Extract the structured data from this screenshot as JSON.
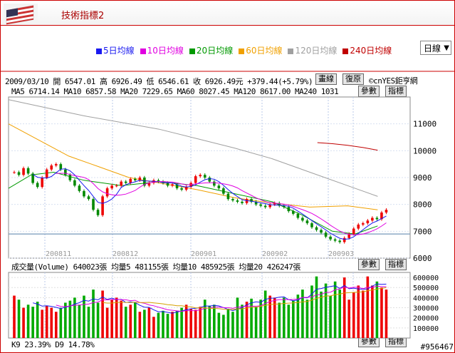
{
  "header": {
    "title": "技術指標2"
  },
  "legend": [
    {
      "label": "5日均線",
      "color": "#1a1af0"
    },
    {
      "label": "10日均線",
      "color": "#e000e0"
    },
    {
      "label": "20日均線",
      "color": "#009900"
    },
    {
      "label": "60日均線",
      "color": "#f0a000"
    },
    {
      "label": "120日均線",
      "color": "#a0a0a0"
    },
    {
      "label": "240日均線",
      "color": "#c00000"
    }
  ],
  "period_select": "日線",
  "info": {
    "line1": "2009/03/10 開 6547.01 高 6926.49 低 6546.61 收 6926.49元 +379.44(+5.79%)",
    "line2": "MA5 6714.14  MA10 6857.58  MA20 7229.65  MA60 8027.45  MA120 8617.00  MA240 1031",
    "vol": "成交量(Volume) 640023張  均量5 481155張  均量10 485925張  均量20 426247張",
    "kd": "K9 23.39%  D9 14.78%",
    "copyright": "©cnYES鉅亨網"
  },
  "buttons": {
    "draw": "畫線",
    "restore": "復原",
    "param": "參數",
    "indicator": "指標"
  },
  "image_id": "#956467",
  "chart_data": [
    {
      "type": "candlestick",
      "title": "",
      "y_ticks": [
        6000,
        7000,
        8000,
        9000,
        10000,
        11000
      ],
      "ylim": [
        6000,
        12000
      ],
      "x_tick_labels": [
        "200811",
        "200812",
        "200901",
        "200902",
        "200903"
      ],
      "reference_line": 6900,
      "series": [
        {
          "name": "240日均線",
          "color": "#c00000",
          "values": [
            [
              0.82,
              10300
            ],
            [
              0.86,
              10260
            ],
            [
              0.9,
              10200
            ],
            [
              0.94,
              10120
            ],
            [
              0.98,
              10020
            ]
          ]
        },
        {
          "name": "120日均線",
          "color": "#a0a0a0",
          "values": [
            [
              0.0,
              11900
            ],
            [
              0.1,
              11600
            ],
            [
              0.2,
              11300
            ],
            [
              0.3,
              11050
            ],
            [
              0.4,
              10800
            ],
            [
              0.5,
              10450
            ],
            [
              0.6,
              10100
            ],
            [
              0.7,
              9700
            ],
            [
              0.8,
              9200
            ],
            [
              0.9,
              8700
            ],
            [
              0.98,
              8300
            ]
          ]
        },
        {
          "name": "60日均線",
          "color": "#f0a000",
          "values": [
            [
              0.0,
              11000
            ],
            [
              0.08,
              10400
            ],
            [
              0.16,
              9800
            ],
            [
              0.24,
              9400
            ],
            [
              0.32,
              9000
            ],
            [
              0.4,
              8800
            ],
            [
              0.5,
              8550
            ],
            [
              0.6,
              8250
            ],
            [
              0.7,
              8050
            ],
            [
              0.8,
              7900
            ],
            [
              0.9,
              7950
            ],
            [
              0.98,
              7800
            ]
          ]
        },
        {
          "name": "20日均線",
          "color": "#009900",
          "values": [
            [
              0.0,
              8600
            ],
            [
              0.06,
              9100
            ],
            [
              0.12,
              9200
            ],
            [
              0.2,
              8900
            ],
            [
              0.3,
              8700
            ],
            [
              0.4,
              8850
            ],
            [
              0.5,
              8700
            ],
            [
              0.6,
              8400
            ],
            [
              0.7,
              8100
            ],
            [
              0.78,
              7600
            ],
            [
              0.86,
              7000
            ],
            [
              0.92,
              6900
            ],
            [
              0.98,
              7200
            ]
          ]
        }
      ],
      "candles": [
        9200,
        9100,
        9350,
        9150,
        8800,
        8650,
        9000,
        9300,
        9450,
        9500,
        9300,
        9100,
        8900,
        8700,
        8500,
        8300,
        8200,
        7800,
        7600,
        8300,
        8600,
        8700,
        8700,
        8850,
        8800,
        8950,
        8900,
        9000,
        8700,
        8800,
        8900,
        8850,
        8800,
        8700,
        8750,
        8600,
        8550,
        8650,
        8800,
        9050,
        9100,
        9000,
        8850,
        8700,
        8600,
        8400,
        8200,
        8150,
        8100,
        8050,
        8200,
        8100,
        8000,
        7950,
        7900,
        8000,
        8050,
        7950,
        7900,
        7750,
        7650,
        7500,
        7400,
        7300,
        7150,
        7050,
        6950,
        6800,
        6700,
        6650,
        6600,
        6750,
        6900,
        7100,
        7250,
        7300,
        7400,
        7500,
        7450,
        7700,
        7800
      ]
    },
    {
      "type": "bar",
      "title": "成交量(Volume)",
      "y_ticks": [
        100000,
        200000,
        300000,
        400000,
        500000,
        600000
      ],
      "ylim": [
        0,
        650000
      ],
      "values": [
        420000,
        380000,
        300000,
        330000,
        310000,
        360000,
        280000,
        320000,
        300000,
        260000,
        300000,
        350000,
        370000,
        400000,
        330000,
        420000,
        310000,
        480000,
        350000,
        470000,
        300000,
        380000,
        400000,
        370000,
        310000,
        330000,
        350000,
        260000,
        280000,
        300000,
        210000,
        250000,
        270000,
        240000,
        260000,
        270000,
        300000,
        330000,
        290000,
        280000,
        310000,
        380000,
        320000,
        330000,
        250000,
        230000,
        290000,
        260000,
        400000,
        330000,
        360000,
        390000,
        310000,
        380000,
        470000,
        420000,
        400000,
        350000,
        400000,
        330000,
        370000,
        430000,
        480000,
        380000,
        520000,
        610000,
        460000,
        540000,
        420000,
        560000,
        480000,
        600000,
        380000,
        450000,
        520000,
        470000,
        610000,
        520000,
        560000,
        500000,
        480000
      ]
    },
    {
      "type": "line",
      "title": "KD",
      "series": [
        {
          "name": "K9",
          "values": [
            23.39
          ]
        },
        {
          "name": "D9",
          "values": [
            14.78
          ]
        }
      ]
    }
  ]
}
